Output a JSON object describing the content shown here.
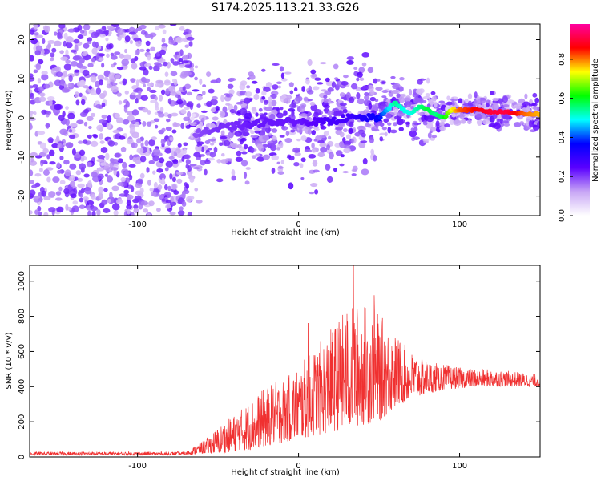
{
  "figure": {
    "title": "S174.2025.113.21.33.G26"
  },
  "chart_data": [
    {
      "type": "heatmap",
      "xlabel": "Height of straight line (km)",
      "ylabel": "Frequency (Hz)",
      "xlim": [
        -167,
        150
      ],
      "ylim": [
        -25,
        24
      ],
      "x_ticks": [
        -100,
        0,
        100
      ],
      "y_ticks": [
        -20,
        -10,
        0,
        10,
        20
      ],
      "colorbar": {
        "label": "Normalized spectral amplitude",
        "range": [
          0,
          0.98
        ],
        "ticks": [
          0.0,
          0.2,
          0.4,
          0.6,
          0.8
        ],
        "colormap": [
          "#ffffff",
          "#c8a6f5",
          "#5a00ff",
          "#0000ff",
          "#00ffff",
          "#00ff00",
          "#ffff00",
          "#ff0000",
          "#ff00a0"
        ]
      },
      "ridge": {
        "description_free": true,
        "x": [
          -65,
          -50,
          -40,
          -30,
          -20,
          -10,
          0,
          10,
          20,
          30,
          40,
          50,
          55,
          60,
          65,
          70,
          75,
          80,
          85,
          90,
          95,
          100,
          110,
          120,
          130,
          140,
          150
        ],
        "y": [
          -4,
          -3,
          -2,
          -2,
          -1,
          -1,
          -1,
          -1,
          -1,
          0,
          0,
          0,
          2,
          4,
          2,
          1,
          3,
          2,
          1,
          0,
          2,
          2,
          2,
          1.5,
          1.5,
          1,
          1
        ],
        "amplitude": [
          0.15,
          0.18,
          0.18,
          0.2,
          0.2,
          0.2,
          0.2,
          0.22,
          0.25,
          0.25,
          0.3,
          0.35,
          0.45,
          0.55,
          0.5,
          0.5,
          0.55,
          0.6,
          0.55,
          0.6,
          0.75,
          0.85,
          0.9,
          0.95,
          0.95,
          0.85,
          0.8
        ]
      }
    },
    {
      "type": "line",
      "xlabel": "Height of straight line (km)",
      "ylabel": "SNR (10 * v/v)",
      "xlim": [
        -167,
        150
      ],
      "ylim": [
        0,
        1090
      ],
      "x_ticks": [
        -100,
        0,
        100
      ],
      "y_ticks": [
        0,
        200,
        400,
        600,
        800,
        1000
      ],
      "color": "#f03030",
      "envelope": {
        "x": [
          -167,
          -130,
          -100,
          -70,
          -58,
          -50,
          -40,
          -30,
          -20,
          -10,
          0,
          10,
          20,
          30,
          40,
          50,
          60,
          70,
          80,
          90,
          100,
          110,
          120,
          130,
          140,
          150
        ],
        "upper": [
          30,
          30,
          30,
          30,
          100,
          170,
          240,
          320,
          400,
          450,
          520,
          620,
          730,
          850,
          880,
          820,
          700,
          600,
          550,
          530,
          510,
          500,
          500,
          490,
          480,
          470
        ],
        "lower": [
          10,
          10,
          10,
          10,
          20,
          20,
          30,
          40,
          60,
          80,
          100,
          120,
          140,
          160,
          180,
          200,
          280,
          330,
          360,
          380,
          390,
          400,
          400,
          400,
          400,
          400
        ]
      },
      "peaks": [
        {
          "x": 34,
          "y": 1090
        },
        {
          "x": 47,
          "y": 920
        },
        {
          "x": 6,
          "y": 760
        }
      ]
    }
  ]
}
